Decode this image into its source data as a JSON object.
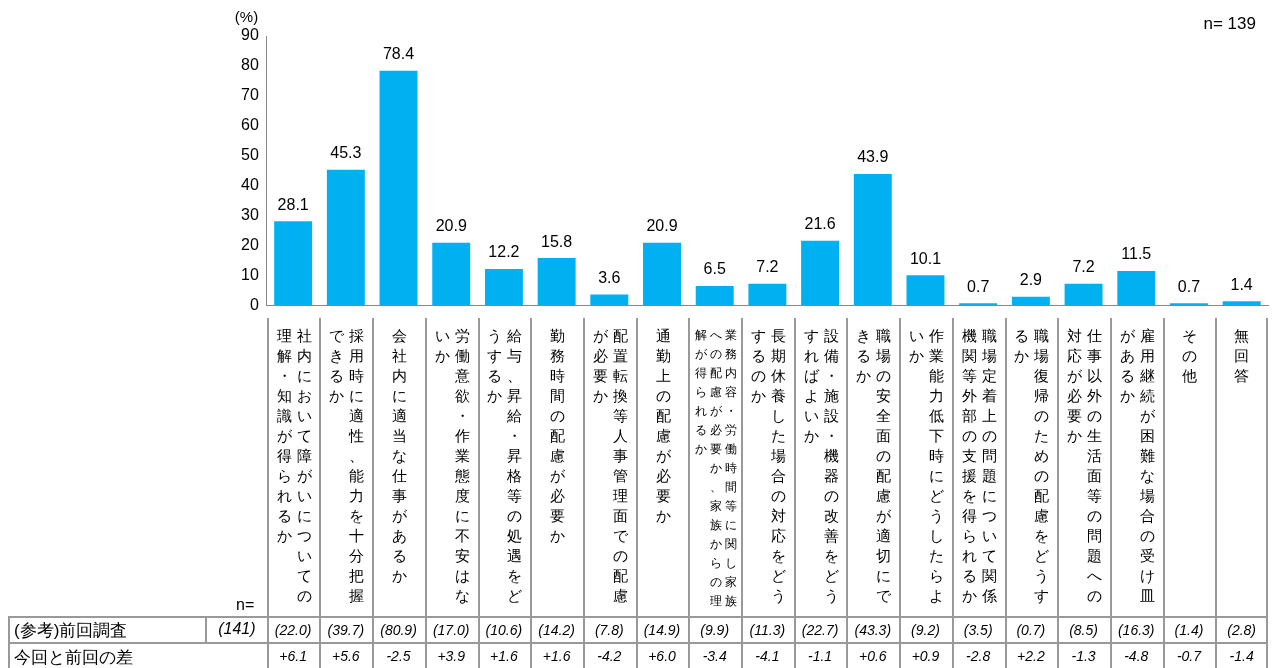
{
  "chart_data": {
    "type": "bar",
    "categories": [
      "社内において障がいについての理解・知識が得られるか",
      "採用時に適性、能力を十分把握できるか",
      "会社内に適当な仕事があるか",
      "労働意欲・作業態度に不安はないか",
      "給与、昇給・昇格等の処遇をどうするか",
      "勤務時間の配慮が必要か",
      "配置転換等人事管理面での配慮が必要か",
      "通勤上の配慮が必要か",
      "業務内容・労働時間等に関し家族への配慮が必要か、家族からの理解が得られるか",
      "長期休養した場合の対応をどうするのか",
      "設備・施設・機器の改善をどうすればよいか",
      "職場の安全面の配慮が適切にできるか",
      "作業能力低下時にどうしたらよいか",
      "職場定着上の問題について関係機関等外部の支援を得られるか",
      "職場復帰のための配慮をどうするか",
      "仕事以外の生活面等の問題への対応が必要か",
      "雇用継続が困難な場合の受け皿があるか",
      "その他",
      "無回答"
    ],
    "values": [
      28.1,
      45.3,
      78.4,
      20.9,
      12.2,
      15.8,
      3.6,
      20.9,
      6.5,
      7.2,
      21.6,
      43.9,
      10.1,
      0.7,
      2.9,
      7.2,
      11.5,
      0.7,
      1.4
    ],
    "color": "#00b0f0",
    "ylim": [
      0,
      90
    ],
    "yticks": [
      0,
      10,
      20,
      30,
      40,
      50,
      60,
      70,
      80,
      90
    ],
    "data_labels": true,
    "annotations": [
      "(%)",
      "n= 139",
      "n=",
      "(参考)前回調査",
      "(141)",
      "今回と前回の差",
      "(22.0)",
      "(39.7)",
      "(80.9)",
      "(17.0)",
      "(10.6)",
      "(14.2)",
      "(7.8)",
      "(14.9)",
      "(9.9)",
      "(11.3)",
      "(22.7)",
      "(43.3)",
      "(9.2)",
      "(3.5)",
      "(0.7)",
      "(8.5)",
      "(16.3)",
      "(1.4)",
      "(2.8)",
      "+6.1",
      "+5.6",
      "-2.5",
      "+3.9",
      "+1.6",
      "+1.6",
      "-4.2",
      "+6.0",
      "-3.4",
      "-4.1",
      "-1.1",
      "+0.6",
      "+0.9",
      "-2.8",
      "+2.2",
      "-1.3",
      "-4.8",
      "-0.7",
      "-1.4"
    ]
  }
}
